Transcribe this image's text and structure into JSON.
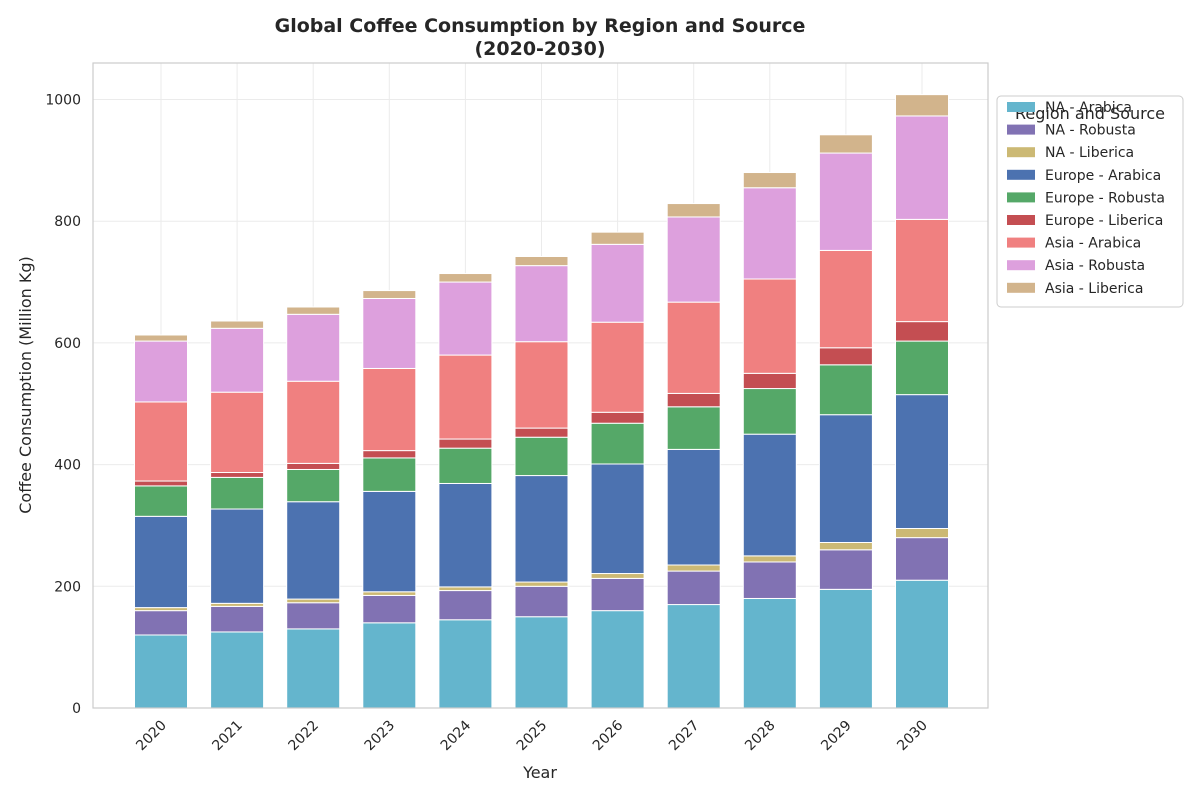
{
  "chart_data": {
    "type": "bar",
    "stacked": true,
    "title": "Global Coffee Consumption by Region and Source",
    "subtitle": "(2020-2030)",
    "xlabel": "Year",
    "ylabel": "Coffee Consumption (Million Kg)",
    "ylim": [
      0,
      1060
    ],
    "yticks": [
      0,
      200,
      400,
      600,
      800,
      1000
    ],
    "grid": true,
    "legend_title": "Region and Source",
    "legend_position": "outside-top-right",
    "categories": [
      "2020",
      "2021",
      "2022",
      "2023",
      "2024",
      "2025",
      "2026",
      "2027",
      "2028",
      "2029",
      "2030"
    ],
    "series": [
      {
        "name": "NA - Arabica",
        "color": "#64b5cd",
        "values": [
          120,
          125,
          130,
          140,
          145,
          150,
          160,
          170,
          180,
          195,
          210
        ]
      },
      {
        "name": "NA - Robusta",
        "color": "#8172b3",
        "values": [
          40,
          42,
          43,
          45,
          48,
          50,
          53,
          55,
          60,
          65,
          70
        ]
      },
      {
        "name": "NA - Liberica",
        "color": "#ccb974",
        "values": [
          5,
          5,
          6,
          6,
          6,
          7,
          8,
          10,
          10,
          12,
          15
        ]
      },
      {
        "name": "Europe - Arabica",
        "color": "#4c72b0",
        "values": [
          150,
          155,
          160,
          165,
          170,
          175,
          180,
          190,
          200,
          210,
          220
        ]
      },
      {
        "name": "Europe - Robusta",
        "color": "#55a868",
        "values": [
          50,
          52,
          53,
          55,
          58,
          63,
          67,
          70,
          75,
          82,
          88
        ]
      },
      {
        "name": "Europe - Liberica",
        "color": "#c44e52",
        "values": [
          8,
          8,
          10,
          12,
          15,
          15,
          18,
          22,
          25,
          28,
          32
        ]
      },
      {
        "name": "Asia - Arabica",
        "color": "#f08080",
        "values": [
          130,
          132,
          135,
          135,
          138,
          142,
          148,
          150,
          155,
          160,
          168
        ]
      },
      {
        "name": "Asia - Robusta",
        "color": "#dda0dd",
        "values": [
          100,
          105,
          110,
          115,
          120,
          125,
          128,
          140,
          150,
          160,
          170
        ]
      },
      {
        "name": "Asia - Liberica",
        "color": "#d2b48c",
        "values": [
          10,
          12,
          12,
          13,
          14,
          15,
          20,
          22,
          25,
          30,
          35
        ]
      }
    ]
  }
}
